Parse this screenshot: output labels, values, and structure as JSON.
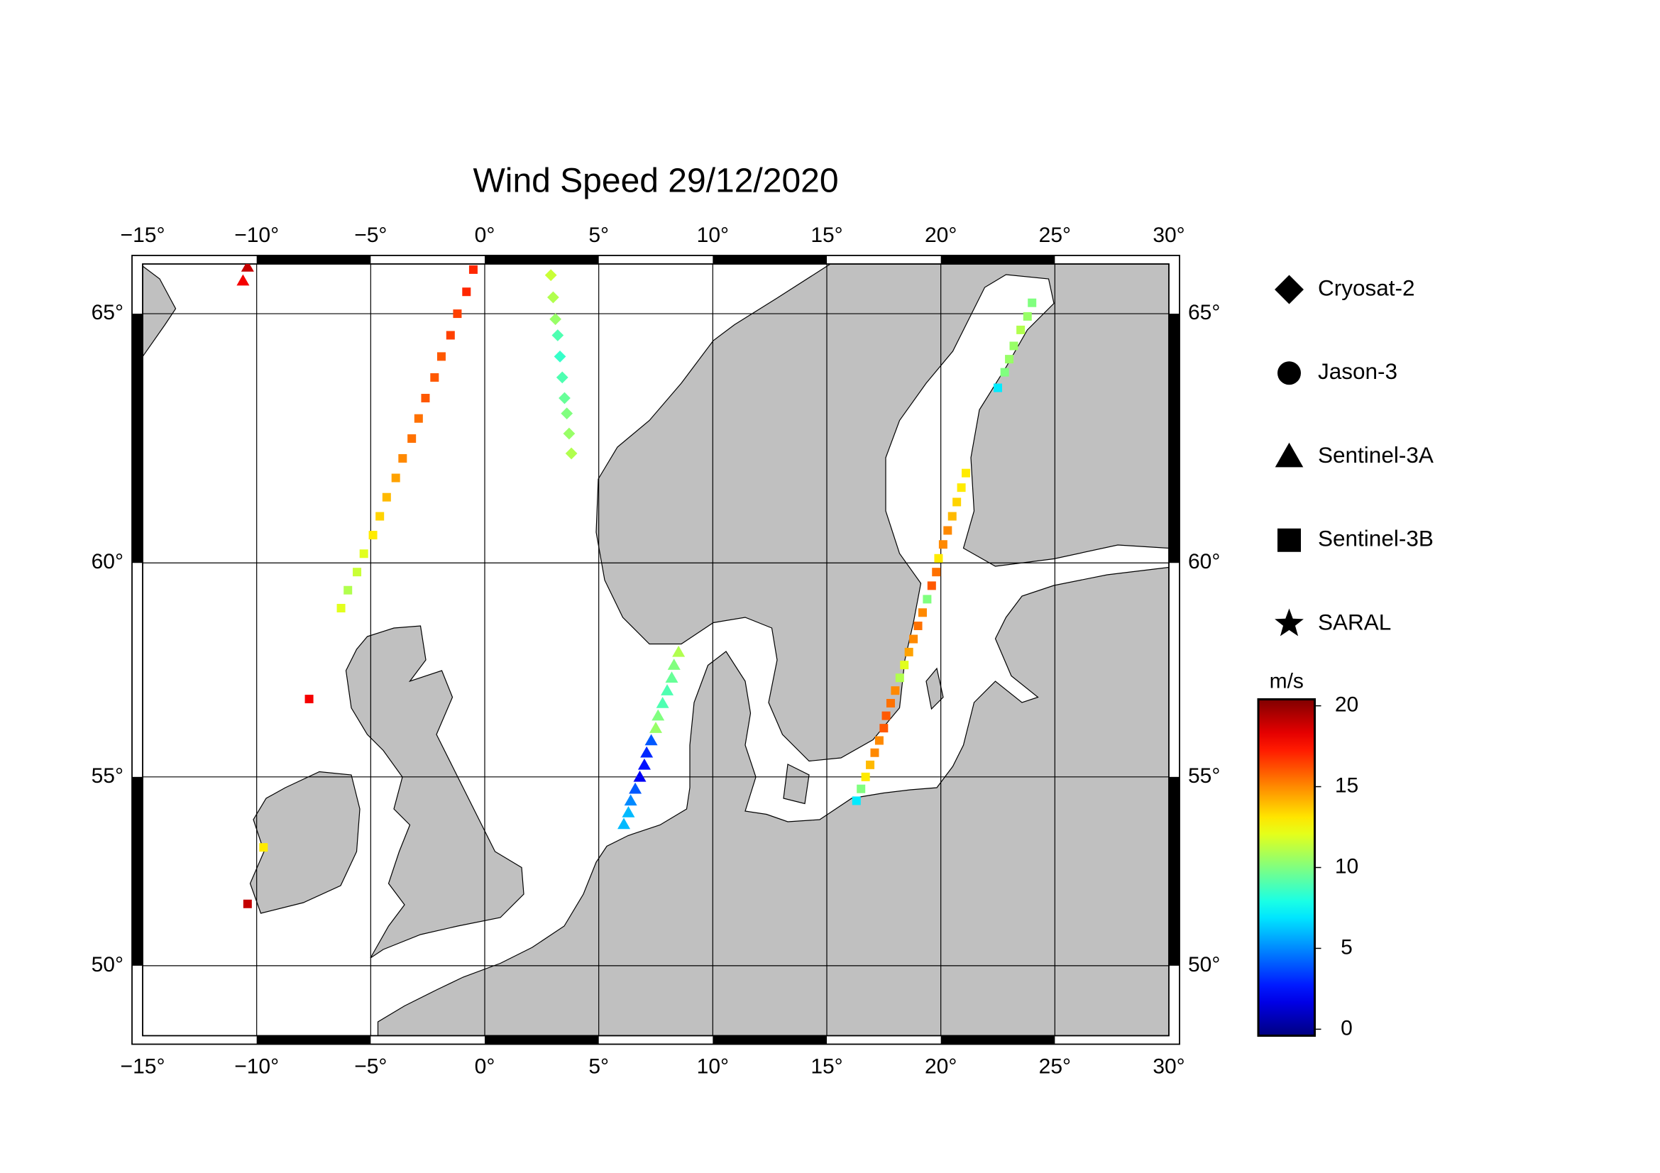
{
  "map": {
    "title": "Wind Speed 29/12/2020",
    "lonlim": [
      -15,
      30
    ],
    "latlim": [
      48,
      65.9
    ],
    "lonticks": [
      {
        "value": -15,
        "label": "−15°"
      },
      {
        "value": -10,
        "label": "−10°"
      },
      {
        "value": -5,
        "label": "−5°"
      },
      {
        "value": 0,
        "label": "0°"
      },
      {
        "value": 5,
        "label": "5°"
      },
      {
        "value": 10,
        "label": "10°"
      },
      {
        "value": 15,
        "label": "15°"
      },
      {
        "value": 20,
        "label": "20°"
      },
      {
        "value": 25,
        "label": "25°"
      },
      {
        "value": 30,
        "label": "30°"
      }
    ],
    "latticks": [
      {
        "value": 50,
        "label": "50°"
      },
      {
        "value": 55,
        "label": "55°"
      },
      {
        "value": 60,
        "label": "60°"
      },
      {
        "value": 65,
        "label": "65°"
      }
    ],
    "grid": true,
    "colorbar": {
      "label": "m/s",
      "colormap": "jet",
      "vlim": [
        -0.4,
        20.4
      ],
      "ticks": [
        0,
        5,
        10,
        15,
        20
      ]
    },
    "satellites": [
      {
        "name": "Cryosat-2",
        "marker": "diamond",
        "tracks": [
          {
            "lon": [
              2.9,
              3.0,
              3.1,
              3.2,
              3.3,
              3.4,
              3.5,
              3.6,
              3.7,
              3.8
            ],
            "lat": [
              65.7,
              65.3,
              64.9,
              64.6,
              64.2,
              63.8,
              63.4,
              63.1,
              62.7,
              62.3
            ],
            "speed": [
              11.5,
              11,
              10.5,
              9,
              8.5,
              9,
              9.5,
              10,
              10.5,
              11
            ]
          }
        ]
      },
      {
        "name": "Jason-3",
        "marker": "circle",
        "tracks": []
      },
      {
        "name": "Sentinel-3A",
        "marker": "triangle",
        "tracks": [
          {
            "lon": [
              -10.4,
              -10.6
            ],
            "lat": [
              65.85,
              65.6
            ],
            "speed": [
              19,
              18
            ]
          },
          {
            "lon": [
              8.5,
              8.3,
              8.2,
              8.0,
              7.8,
              7.6,
              7.5,
              7.3,
              7.1,
              7.0,
              6.8,
              6.6,
              6.4,
              6.3,
              6.1
            ],
            "lat": [
              58.0,
              57.7,
              57.4,
              57.1,
              56.8,
              56.5,
              56.2,
              55.9,
              55.6,
              55.3,
              55.0,
              54.7,
              54.4,
              54.1,
              53.8
            ],
            "speed": [
              11,
              10,
              9.5,
              9,
              9,
              10,
              10.5,
              4,
              3,
              2.5,
              2,
              4,
              5,
              6,
              6
            ]
          }
        ]
      },
      {
        "name": "Sentinel-3B",
        "marker": "square",
        "tracks": [
          {
            "lon": [
              -0.5,
              -0.8,
              -1.2,
              -1.5,
              -1.9,
              -2.2,
              -2.6,
              -2.9,
              -3.2,
              -3.6,
              -3.9,
              -4.3,
              -4.6,
              -4.9,
              -5.3,
              -5.6,
              -6.0,
              -6.3
            ],
            "lat": [
              65.8,
              65.4,
              65.0,
              64.6,
              64.2,
              63.8,
              63.4,
              63.0,
              62.6,
              62.2,
              61.8,
              61.4,
              61.0,
              60.6,
              60.2,
              59.8,
              59.4,
              59.0
            ],
            "speed": [
              17,
              17,
              16.5,
              16.5,
              16,
              16,
              16,
              15.5,
              15.5,
              15,
              14.5,
              14,
              13.5,
              13,
              12,
              11.5,
              11,
              12
            ]
          },
          {
            "lon": [
              -7.7,
              -10.4,
              -9.7
            ],
            "lat": [
              56.9,
              51.7,
              53.2
            ],
            "speed": [
              18,
              19,
              13
            ]
          },
          {
            "lon": [
              24.0,
              23.8,
              23.5,
              23.2,
              23.0,
              22.8,
              22.5
            ],
            "lat": [
              65.2,
              64.95,
              64.7,
              64.4,
              64.15,
              63.9,
              63.6
            ],
            "speed": [
              10,
              10.5,
              11,
              10.5,
              10.5,
              10,
              7
            ]
          },
          {
            "lon": [
              21.1,
              20.9,
              20.7,
              20.5,
              20.3,
              20.1,
              19.9,
              19.8,
              19.6,
              19.4,
              19.2,
              19.0,
              18.8,
              18.6,
              18.4,
              18.2,
              18.0,
              17.8,
              17.6,
              17.5,
              17.3,
              17.1,
              16.9,
              16.7,
              16.5,
              16.3
            ],
            "lat": [
              61.9,
              61.6,
              61.3,
              61.0,
              60.7,
              60.4,
              60.1,
              59.8,
              59.5,
              59.2,
              58.9,
              58.6,
              58.3,
              58.0,
              57.7,
              57.4,
              57.1,
              56.8,
              56.5,
              56.2,
              55.9,
              55.6,
              55.3,
              55.0,
              54.7,
              54.4
            ],
            "speed": [
              13,
              13,
              13.5,
              14,
              15,
              15,
              13,
              15.5,
              16,
              10,
              15,
              15.5,
              15,
              14.5,
              12,
              11,
              15,
              15.5,
              16,
              16,
              15,
              15,
              14,
              13,
              10,
              7
            ]
          }
        ]
      },
      {
        "name": "SARAL",
        "marker": "star",
        "tracks": []
      }
    ]
  }
}
